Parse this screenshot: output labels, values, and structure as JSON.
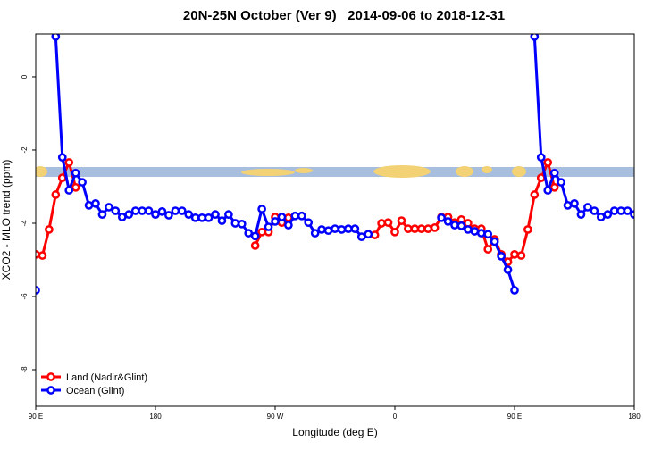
{
  "chart_data": {
    "type": "line",
    "title": "20N-25N October (Ver 9)   2014-09-06 to 2018-12-31",
    "x_label": "Longitude (deg E)",
    "y_label": "XCO2 - MLO trend (ppm)",
    "x": [
      90,
      95,
      100,
      105,
      110,
      115,
      120,
      125,
      130,
      135,
      140,
      145,
      150,
      155,
      160,
      165,
      170,
      175,
      180,
      185,
      190,
      195,
      200,
      205,
      210,
      215,
      220,
      225,
      230,
      235,
      240,
      245,
      250,
      255,
      260,
      265,
      270,
      275,
      280,
      285,
      290,
      295,
      300,
      305,
      310,
      315,
      320,
      325,
      330,
      335,
      340,
      345,
      350,
      355,
      360,
      365,
      370,
      375,
      380,
      385,
      390,
      395,
      400,
      405,
      410,
      415,
      420,
      425,
      430,
      435,
      440,
      445,
      450,
      455,
      460,
      465,
      470,
      475,
      480,
      485,
      490,
      495,
      500,
      505,
      510,
      515,
      520,
      525,
      530,
      535,
      540
    ],
    "xlim": [
      90,
      540
    ],
    "xticks": [
      {
        "value": 90,
        "label": "90 E"
      },
      {
        "value": 180,
        "label": "180"
      },
      {
        "value": 270,
        "label": "90 W"
      },
      {
        "value": 360,
        "label": "0"
      },
      {
        "value": 450,
        "label": "90 E"
      },
      {
        "value": 540,
        "label": "180"
      }
    ],
    "ylim": [
      -9,
      1.17
    ],
    "yticks": [
      0,
      -2,
      -4,
      -6,
      -8
    ],
    "legend": "bottom-left",
    "series": [
      {
        "name": "Land (Nadir&Glint)",
        "color": "#ff0000",
        "values": [
          -4.85,
          -4.88,
          -4.17,
          -3.22,
          -2.76,
          -2.34,
          -3.02,
          null,
          null,
          null,
          null,
          null,
          null,
          null,
          null,
          null,
          null,
          null,
          null,
          null,
          null,
          null,
          null,
          null,
          null,
          null,
          null,
          null,
          null,
          null,
          null,
          null,
          null,
          -4.61,
          -4.24,
          -4.24,
          -3.83,
          -3.98,
          -3.85,
          null,
          null,
          null,
          null,
          null,
          null,
          null,
          null,
          null,
          null,
          null,
          null,
          -4.32,
          -4.0,
          -3.98,
          -4.24,
          -3.93,
          -4.15,
          -4.15,
          -4.15,
          -4.15,
          -4.12,
          -3.83,
          -3.83,
          -3.98,
          -3.9,
          -4.0,
          -4.15,
          -4.15,
          -4.71,
          -4.44,
          -4.85,
          -5.05,
          -4.85,
          -4.88,
          -4.17,
          -3.22,
          -2.76,
          -2.34,
          -3.02,
          null,
          null,
          null,
          null,
          null,
          null,
          null,
          null,
          null,
          null,
          null,
          null
        ]
      },
      {
        "name": "Ocean (Glint)",
        "color": "#0000ff",
        "values": [
          -5.83,
          null,
          null,
          1.1,
          -2.2,
          -3.1,
          -2.63,
          -2.88,
          -3.51,
          -3.46,
          -3.76,
          -3.56,
          -3.66,
          -3.83,
          -3.76,
          -3.66,
          -3.66,
          -3.66,
          -3.76,
          -3.68,
          -3.78,
          -3.66,
          -3.66,
          -3.76,
          -3.85,
          -3.85,
          -3.85,
          -3.76,
          -3.93,
          -3.76,
          -4.0,
          -4.02,
          -4.27,
          -4.35,
          -3.61,
          -4.1,
          -3.95,
          -3.83,
          -4.05,
          -3.8,
          -3.8,
          -3.98,
          -4.27,
          -4.17,
          -4.2,
          -4.15,
          -4.17,
          -4.15,
          -4.15,
          -4.37,
          -4.3,
          null,
          null,
          null,
          null,
          null,
          null,
          null,
          null,
          null,
          null,
          -3.85,
          -3.95,
          -4.05,
          -4.07,
          -4.17,
          -4.22,
          -4.27,
          -4.3,
          -4.5,
          -4.9,
          -5.27,
          -5.83,
          null,
          null,
          1.1,
          -2.2,
          -3.1,
          -2.63,
          -2.88,
          -3.51,
          -3.46,
          -3.76,
          -3.56,
          -3.66,
          -3.83,
          -3.76,
          -3.66,
          -3.66,
          -3.66,
          -3.76
        ]
      }
    ]
  }
}
